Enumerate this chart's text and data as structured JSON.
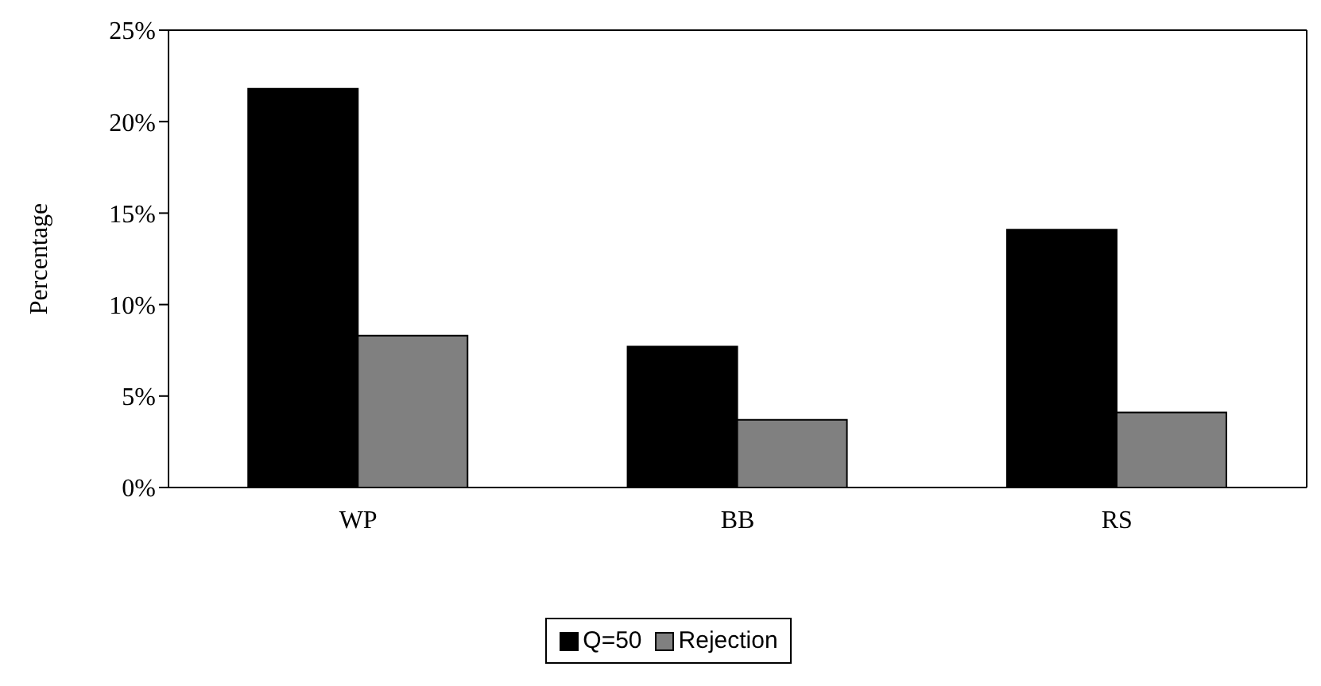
{
  "chart_data": {
    "type": "bar",
    "ylabel": "Percentage",
    "categories": [
      "WP",
      "BB",
      "RS"
    ],
    "series": [
      {
        "name": "Q=50",
        "color": "#000000",
        "values": [
          21.8,
          7.7,
          14.1
        ]
      },
      {
        "name": "Rejection",
        "color": "#808080",
        "values": [
          8.3,
          3.7,
          4.1
        ]
      }
    ],
    "ylim": [
      0,
      25
    ],
    "yticks": [
      {
        "value": 0,
        "label": "0%"
      },
      {
        "value": 5,
        "label": "5%"
      },
      {
        "value": 10,
        "label": "10%"
      },
      {
        "value": 15,
        "label": "15%"
      },
      {
        "value": 20,
        "label": "20%"
      },
      {
        "value": 25,
        "label": "25%"
      }
    ],
    "grid": false,
    "legend": "bottom"
  }
}
